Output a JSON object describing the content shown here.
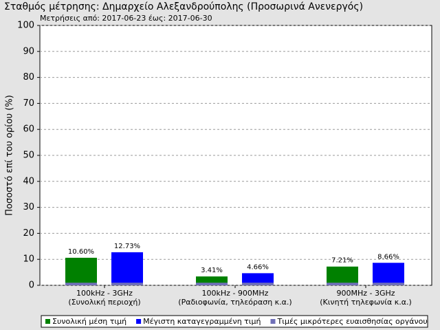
{
  "chart_data": {
    "type": "bar",
    "title": "Σταθμός μέτρησης: Δημαρχείο Αλεξανδρούπολης (Προσωρινά Ανενεργός)",
    "subtitle": "Μετρήσεις από: 2017-06-23 έως: 2017-06-30",
    "y_label": "Ποσοστό επί του ορίου (%)",
    "categories": [
      [
        "100kHz - 3GHz",
        "(Συνολική περιοχή)"
      ],
      [
        "100kHz - 900MHz",
        "(Ραδιοφωνία, τηλεόραση κ.α.)"
      ],
      [
        "900MHz - 3GHz",
        "(Κινητή τηλεφωνία κ.α.)"
      ]
    ],
    "series": [
      {
        "name": "Συνολική μέση τιμή",
        "color": "#008000",
        "values": [
          10.6,
          3.41,
          7.21
        ],
        "value_labels": [
          "10.60%",
          "3.41%",
          "7.21%"
        ]
      },
      {
        "name": "Μέγιστη καταγεγραμμένη τιμή",
        "color": "#0000ff",
        "values": [
          12.73,
          4.66,
          8.66
        ],
        "value_labels": [
          "12.73%",
          "4.66%",
          "8.66%"
        ]
      },
      {
        "name": "Τιμές μικρότερες ευαισθησίας οργάνου",
        "color": "#7070b8",
        "values": [
          1,
          1,
          1
        ]
      }
    ],
    "ylim": [
      0,
      100
    ],
    "yticks": [
      0,
      10,
      20,
      30,
      40,
      50,
      60,
      70,
      80,
      90,
      100
    ],
    "grid": true,
    "legend": "bottom"
  }
}
